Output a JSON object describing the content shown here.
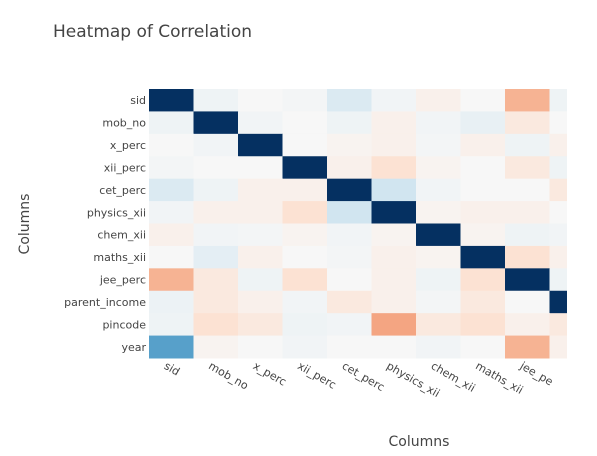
{
  "chart_data": {
    "type": "heatmap",
    "title": "Heatmap of Correlation",
    "xlabel": "Columns",
    "ylabel": "Columns",
    "x": [
      "sid",
      "mob_no",
      "x_perc",
      "xii_perc",
      "cet_perc",
      "physics_xii",
      "chem_xii",
      "maths_xii",
      "jee_perc",
      "parent_income"
    ],
    "x_tick_labels": [
      "sid",
      "mob_no",
      "x_perc",
      "xii_perc",
      "cet_perc",
      "physics_xii",
      "chem_xii",
      "maths_xii",
      "jee_pe",
      ""
    ],
    "y": [
      "sid",
      "mob_no",
      "x_perc",
      "xii_perc",
      "cet_perc",
      "physics_xii",
      "chem_xii",
      "maths_xii",
      "jee_perc",
      "parent_income",
      "pincode",
      "year"
    ],
    "z": [
      [
        1.0,
        0.05,
        0.0,
        0.02,
        0.15,
        0.03,
        -0.05,
        0.0,
        -0.35,
        0.06
      ],
      [
        0.05,
        1.0,
        0.03,
        0.0,
        0.05,
        -0.05,
        0.03,
        0.08,
        -0.1,
        -0.05
      ],
      [
        0.0,
        0.03,
        1.0,
        0.0,
        -0.03,
        -0.05,
        0.02,
        -0.05,
        0.05,
        0.02
      ],
      [
        0.02,
        0.0,
        0.0,
        1.0,
        -0.05,
        -0.15,
        -0.03,
        0.0,
        -0.1,
        0.05
      ],
      [
        0.15,
        0.05,
        -0.05,
        -0.05,
        1.0,
        0.2,
        0.03,
        0.0,
        0.0,
        -0.1
      ],
      [
        0.03,
        -0.05,
        -0.05,
        -0.15,
        0.2,
        1.0,
        -0.03,
        -0.05,
        -0.05,
        0.0
      ],
      [
        -0.05,
        0.03,
        0.02,
        -0.03,
        0.03,
        -0.03,
        1.0,
        -0.03,
        0.05,
        0.03
      ],
      [
        0.0,
        0.1,
        -0.05,
        0.0,
        0.02,
        -0.05,
        -0.03,
        1.0,
        -0.15,
        -0.05
      ],
      [
        -0.35,
        -0.1,
        0.05,
        -0.15,
        0.0,
        -0.05,
        0.05,
        -0.15,
        1.0,
        0.05
      ],
      [
        0.06,
        -0.1,
        -0.05,
        0.03,
        -0.1,
        -0.05,
        0.02,
        -0.1,
        0.0,
        1.0
      ],
      [
        0.05,
        -0.15,
        -0.1,
        0.05,
        0.03,
        -0.4,
        -0.1,
        -0.15,
        -0.05,
        -0.08
      ],
      [
        0.55,
        -0.03,
        0.0,
        0.03,
        0.0,
        0.0,
        0.03,
        0.0,
        -0.35,
        -0.05
      ]
    ],
    "partial_last_column": [
      0.05,
      0.0,
      -0.05,
      0.05,
      -0.1,
      0.0,
      0.03,
      -0.05,
      0.05,
      1.0,
      -0.1,
      -0.05
    ],
    "zlim": [
      -1,
      1
    ],
    "colorscale": [
      "#67001f",
      "#b2182b",
      "#d6604d",
      "#f4a582",
      "#fddbc7",
      "#f7f7f7",
      "#d1e5f0",
      "#92c5de",
      "#4393c3",
      "#2166ac",
      "#053061"
    ],
    "colorscale_min_color": "#67001f",
    "colorscale_max_color": "#053061",
    "grid": false,
    "legend": "none"
  }
}
